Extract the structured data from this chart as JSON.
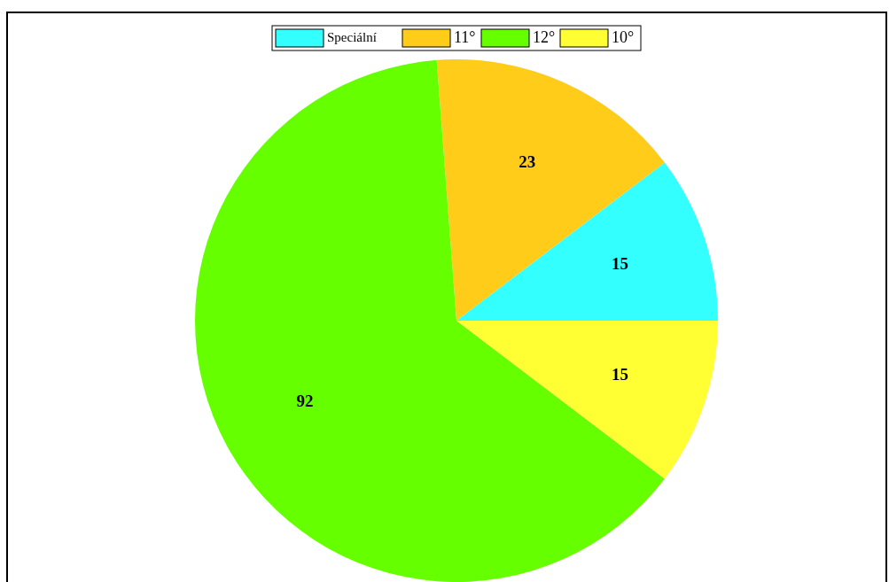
{
  "chart_data": {
    "type": "pie",
    "categories": [
      "Speciální",
      "11°",
      "12°",
      "10°"
    ],
    "values": [
      15,
      23,
      92,
      15
    ],
    "colors": [
      "#33ffff",
      "#ffcc1a",
      "#66ff00",
      "#ffff33"
    ],
    "data_labels": true,
    "legend": "top"
  }
}
